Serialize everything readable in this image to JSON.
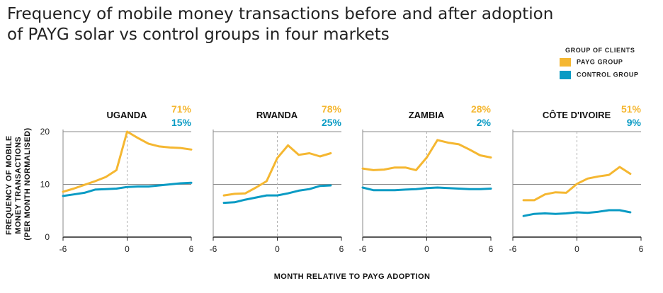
{
  "chart_data": {
    "type": "line",
    "title": "Frequency of mobile money transactions before and after adoption\nof PAYG solar vs control groups in four markets",
    "xlabel": "MONTH RELATIVE TO PAYG ADOPTION",
    "ylabel_lines": [
      "FREQUENCY OF MOBILE",
      "MONEY TRANSACTIONS",
      "(PER MONTH NORMALISED)"
    ],
    "legend": {
      "title": "GROUP OF CLIENTS",
      "items": [
        {
          "name": "PAYG GROUP",
          "color": "#f5b731"
        },
        {
          "name": "CONTROL GROUP",
          "color": "#0a9bc4"
        }
      ]
    },
    "xlim": [
      -6,
      6
    ],
    "ylim": [
      0,
      20
    ],
    "x_ticks": [
      "-6",
      "0",
      "6"
    ],
    "y_ticks": [
      "0",
      "10",
      "20"
    ],
    "panels": [
      {
        "market": "UGANDA",
        "payg_pct": "71%",
        "control_pct": "15%",
        "payg": {
          "x": [
            -6,
            -5,
            -4,
            -3,
            -2,
            -1,
            0,
            1,
            2,
            3,
            4,
            5,
            6
          ],
          "y": [
            8.6,
            9.2,
            9.9,
            10.6,
            11.4,
            12.7,
            20.0,
            18.8,
            17.7,
            17.2,
            17.0,
            16.9,
            16.6
          ]
        },
        "control": {
          "x": [
            -6,
            -5,
            -4,
            -3,
            -2,
            -1,
            0,
            1,
            2,
            3,
            4,
            5,
            6
          ],
          "y": [
            7.8,
            8.1,
            8.4,
            9.0,
            9.1,
            9.2,
            9.5,
            9.6,
            9.6,
            9.8,
            10.0,
            10.2,
            10.3
          ]
        }
      },
      {
        "market": "RWANDA",
        "payg_pct": "78%",
        "control_pct": "25%",
        "payg": {
          "x": [
            -5,
            -4,
            -3,
            -2,
            -1,
            0,
            1,
            2,
            3,
            4,
            5
          ],
          "y": [
            7.9,
            8.2,
            8.3,
            9.4,
            10.6,
            15.0,
            17.4,
            15.6,
            15.9,
            15.3,
            15.9
          ]
        },
        "control": {
          "x": [
            -5,
            -4,
            -3,
            -2,
            -1,
            0,
            1,
            2,
            3,
            4,
            5
          ],
          "y": [
            6.5,
            6.6,
            7.1,
            7.5,
            7.9,
            7.9,
            8.3,
            8.8,
            9.1,
            9.7,
            9.8
          ]
        }
      },
      {
        "market": "ZAMBIA",
        "payg_pct": "28%",
        "control_pct": "2%",
        "payg": {
          "x": [
            -6,
            -5,
            -4,
            -3,
            -2,
            -1,
            0,
            1,
            2,
            3,
            4,
            5,
            6
          ],
          "y": [
            13.0,
            12.7,
            12.8,
            13.2,
            13.2,
            12.7,
            15.1,
            18.4,
            17.9,
            17.6,
            16.6,
            15.5,
            15.1
          ]
        },
        "control": {
          "x": [
            -6,
            -5,
            -4,
            -3,
            -2,
            -1,
            0,
            1,
            2,
            3,
            4,
            5,
            6
          ],
          "y": [
            9.4,
            8.9,
            8.9,
            8.9,
            9.0,
            9.1,
            9.3,
            9.4,
            9.3,
            9.2,
            9.1,
            9.1,
            9.2
          ]
        }
      },
      {
        "market": "CÔTE D'IVOIRE",
        "payg_pct": "51%",
        "control_pct": "9%",
        "payg": {
          "x": [
            -5,
            -4,
            -3,
            -2,
            -1,
            0,
            1,
            2,
            3,
            4,
            5
          ],
          "y": [
            7.0,
            7.0,
            8.1,
            8.5,
            8.4,
            10.1,
            11.1,
            11.5,
            11.8,
            13.3,
            12.0
          ]
        },
        "control": {
          "x": [
            -5,
            -4,
            -3,
            -2,
            -1,
            0,
            1,
            2,
            3,
            4,
            5
          ],
          "y": [
            4.0,
            4.4,
            4.5,
            4.4,
            4.5,
            4.7,
            4.6,
            4.8,
            5.1,
            5.1,
            4.7
          ]
        }
      }
    ]
  }
}
